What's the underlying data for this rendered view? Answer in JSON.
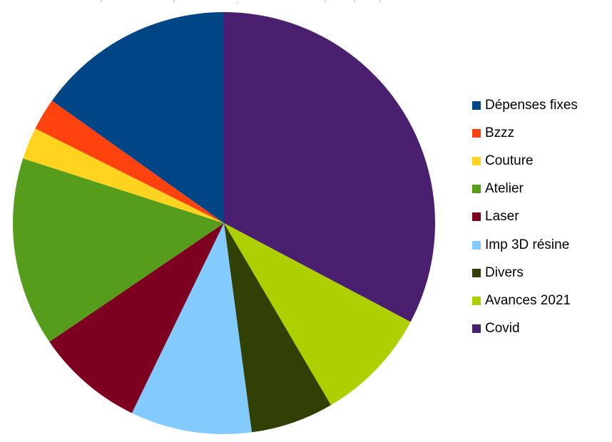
{
  "chart_data": {
    "type": "pie",
    "title": "",
    "start_angle_deg": 90,
    "direction": "clockwise",
    "legend_position": "right",
    "slices": [
      {
        "label": "Covid",
        "value": 33.5,
        "color": "#4b1f6f"
      },
      {
        "label": "Avances 2021",
        "value": 9.0,
        "color": "#aecf00"
      },
      {
        "label": "Divers",
        "value": 6.5,
        "color": "#314004"
      },
      {
        "label": "Imp 3D résine",
        "value": 9.5,
        "color": "#83caff"
      },
      {
        "label": "Laser",
        "value": 8.5,
        "color": "#7e0021"
      },
      {
        "label": "Atelier",
        "value": 14.8,
        "color": "#579d1c"
      },
      {
        "label": "Couture",
        "value": 2.5,
        "color": "#ffd320"
      },
      {
        "label": "Bzzz",
        "value": 2.5,
        "color": "#ff420e"
      },
      {
        "label": "Dépenses fixes",
        "value": 15.5,
        "color": "#004586"
      }
    ],
    "legend_order": [
      "Dépenses fixes",
      "Bzzz",
      "Couture",
      "Atelier",
      "Laser",
      "Imp 3D résine",
      "Divers",
      "Avances 2021",
      "Covid"
    ]
  }
}
